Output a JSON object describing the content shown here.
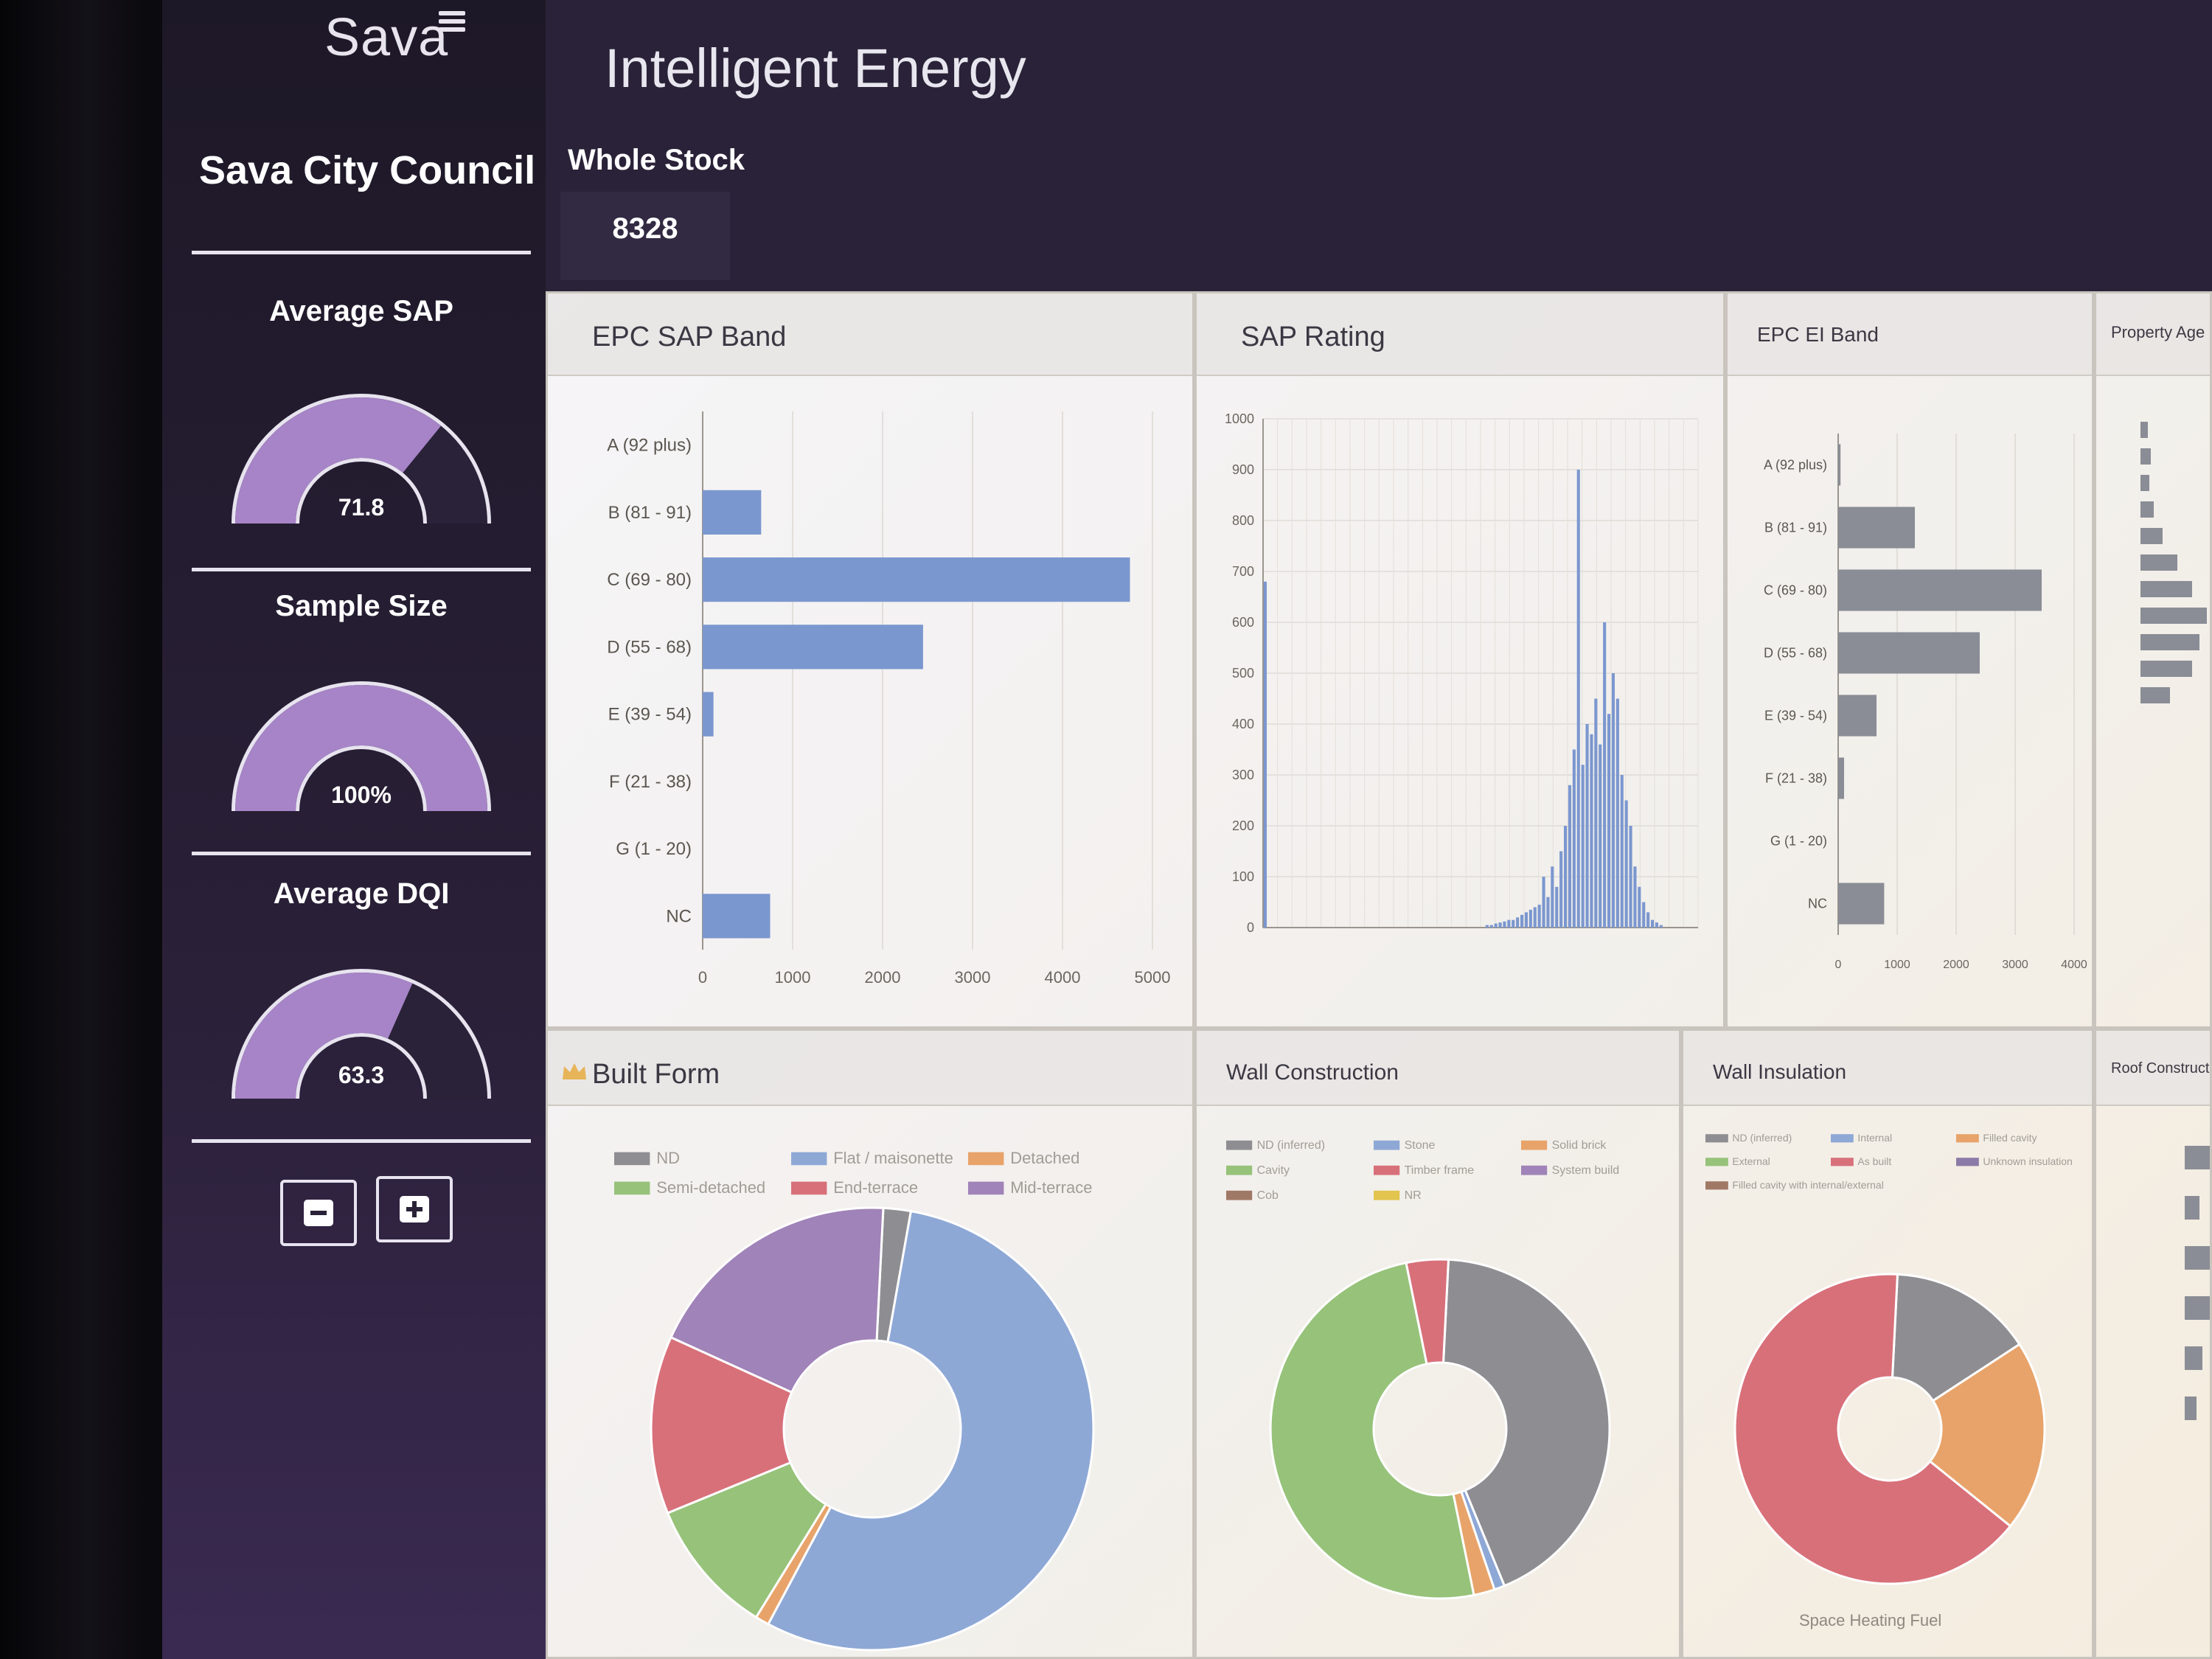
{
  "brand": {
    "logo_text": "Sava",
    "app_title": "Intelligent Energy"
  },
  "sidebar": {
    "org_name": "Sava City Council",
    "metrics": [
      {
        "title": "Average SAP",
        "value": "71.8",
        "fill": 0.718
      },
      {
        "title": "Sample Size",
        "value": "100%",
        "fill": 1.0
      },
      {
        "title": "Average DQI",
        "value": "63.3",
        "fill": 0.633
      }
    ],
    "buttons": {
      "minus": "minus",
      "plus": "plus"
    }
  },
  "kpi": {
    "label": "Whole Stock",
    "value": "8328"
  },
  "colors": {
    "gauge_fill": "#a684c7",
    "gauge_empty": "#2a2238",
    "bar_blue": "#7b97cf",
    "bar_grey": "#8a8d95",
    "nd": "#8e8e92",
    "flat": "#8ea8d6",
    "detached": "#e8a36a",
    "semi": "#97c27a",
    "end_terrace": "#d8707a",
    "mid_terrace": "#a083b8"
  },
  "panels": {
    "epc_sap_band": "EPC SAP Band",
    "sap_rating": "SAP Rating",
    "epc_ei_band": "EPC EI Band",
    "property_age": "Property Age",
    "built_form": "Built Form",
    "wall_construction": "Wall Construction",
    "wall_insulation": "Wall Insulation",
    "roof_construction": "Roof Construction",
    "space_heating_fuel": "Space Heating Fuel"
  },
  "chart_data": [
    {
      "type": "bar",
      "title": "EPC SAP Band",
      "categories": [
        "A (92 plus)",
        "B (81 - 91)",
        "C (69 - 80)",
        "D (55 - 68)",
        "E (39 - 54)",
        "F (21 - 38)",
        "G (1 - 20)",
        "NC"
      ],
      "values": [
        0,
        650,
        4750,
        2450,
        120,
        0,
        0,
        750
      ],
      "xticks": [
        "0",
        "1000",
        "2000",
        "3000",
        "4000",
        "5000"
      ],
      "xlim": [
        0,
        5000
      ]
    },
    {
      "type": "bar",
      "title": "SAP Rating",
      "yticks": [
        "0",
        "100",
        "200",
        "300",
        "400",
        "500",
        "600",
        "700",
        "800",
        "900",
        "1000"
      ],
      "ylim": [
        0,
        1000
      ],
      "x": [
        1,
        2,
        3,
        4,
        5,
        6,
        7,
        8,
        9,
        10,
        11,
        12,
        13,
        14,
        15,
        16,
        17,
        18,
        19,
        20,
        21,
        22,
        23,
        24,
        25,
        26,
        27,
        28,
        29,
        30,
        31,
        32,
        33,
        34,
        35,
        36,
        37,
        38,
        39,
        40,
        41,
        42,
        43,
        44,
        45,
        46,
        47,
        48,
        49,
        50,
        51,
        52,
        53,
        54,
        55,
        56,
        57,
        58,
        59,
        60,
        61,
        62,
        63,
        64,
        65,
        66,
        67,
        68,
        69,
        70,
        71,
        72,
        73,
        74,
        75,
        76,
        77,
        78,
        79,
        80,
        81,
        82,
        83,
        84,
        85,
        86,
        87,
        88,
        89,
        90,
        91,
        92,
        93,
        94,
        95,
        96,
        97,
        98,
        99,
        100
      ],
      "values": [
        680,
        0,
        0,
        0,
        0,
        0,
        0,
        0,
        0,
        0,
        0,
        0,
        0,
        0,
        0,
        0,
        0,
        0,
        0,
        0,
        0,
        0,
        0,
        0,
        0,
        0,
        0,
        0,
        0,
        0,
        0,
        0,
        0,
        0,
        0,
        0,
        0,
        0,
        0,
        0,
        0,
        0,
        0,
        0,
        0,
        0,
        0,
        0,
        0,
        0,
        0,
        5,
        5,
        8,
        10,
        12,
        15,
        15,
        20,
        25,
        30,
        35,
        40,
        45,
        100,
        60,
        120,
        80,
        150,
        200,
        280,
        350,
        900,
        320,
        400,
        380,
        450,
        360,
        600,
        420,
        500,
        450,
        300,
        250,
        200,
        120,
        80,
        50,
        30,
        15,
        10,
        5,
        0,
        0,
        0,
        0,
        0,
        0,
        0,
        0
      ]
    },
    {
      "type": "bar",
      "title": "EPC EI Band",
      "categories": [
        "A (92 plus)",
        "B (81 - 91)",
        "C (69 - 80)",
        "D (55 - 68)",
        "E (39 - 54)",
        "F (21 - 38)",
        "G (1 - 20)",
        "NC"
      ],
      "values": [
        40,
        1300,
        3450,
        2400,
        650,
        100,
        0,
        780
      ],
      "xticks": [
        "0",
        "1000",
        "2000",
        "3000",
        "4000"
      ],
      "xlim": [
        0,
        4000
      ]
    },
    {
      "type": "pie",
      "title": "Built Form",
      "legend": [
        "ND",
        "Flat / maisonette",
        "Detached",
        "Semi-detached",
        "End-terrace",
        "Mid-terrace"
      ],
      "values": [
        2,
        55,
        1,
        10,
        13,
        19
      ]
    },
    {
      "type": "pie",
      "title": "Wall Construction",
      "legend": [
        "ND (inferred)",
        "Stone",
        "Solid brick",
        "Cavity",
        "Timber frame",
        "System build",
        "Cob",
        "NR"
      ],
      "values": [
        43,
        1,
        2,
        50,
        4,
        0,
        0,
        0
      ]
    },
    {
      "type": "pie",
      "title": "Wall Insulation",
      "legend": [
        "ND (inferred)",
        "Internal",
        "Filled cavity",
        "External",
        "As built",
        "Unknown insulation",
        "Filled cavity with internal/external"
      ],
      "values": [
        15,
        0,
        20,
        0,
        65,
        0,
        0
      ]
    }
  ]
}
